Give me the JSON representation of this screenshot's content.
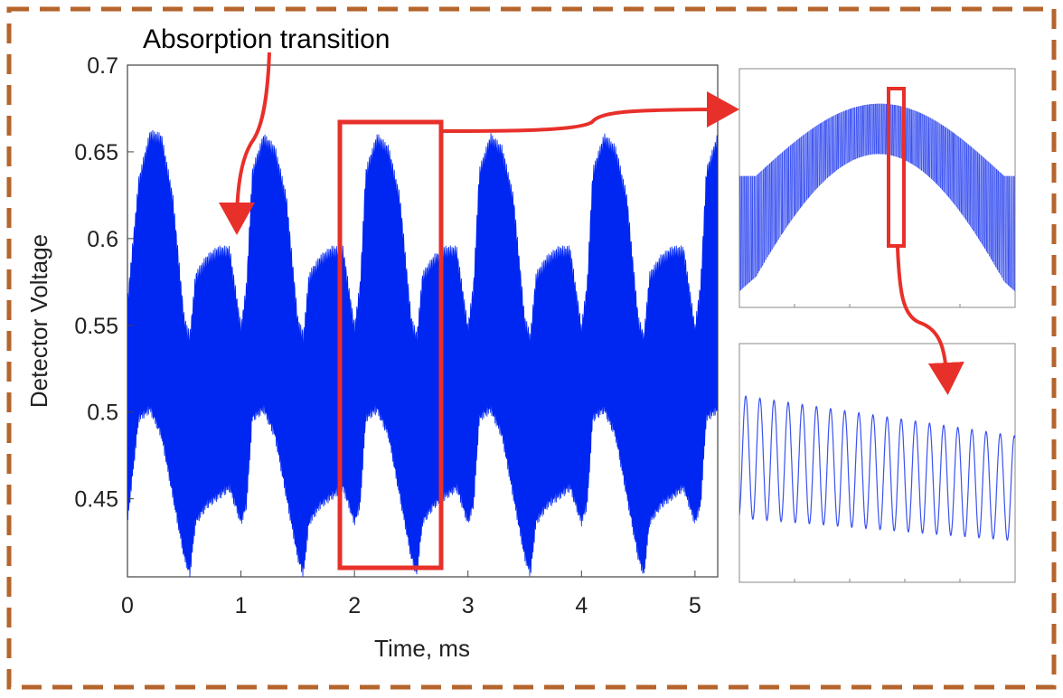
{
  "colors": {
    "signal": "#0026f2",
    "signal_light": "#3b52f0",
    "highlight": "#e8302a",
    "border": "#b5642c",
    "axis": "#444444"
  },
  "annotation": {
    "text": "Absorption transition"
  },
  "chart_data": [
    {
      "type": "area",
      "name": "main",
      "xlabel": "Time, ms",
      "ylabel": "Detector Voltage",
      "xlim": [
        0,
        5.2
      ],
      "ylim": [
        0.405,
        0.7
      ],
      "xticks": [
        0,
        1,
        2,
        3,
        4,
        5
      ],
      "yticks": [
        0.45,
        0.5,
        0.55,
        0.6,
        0.65,
        0.7
      ],
      "xtick_labels": [
        "0",
        "1",
        "2",
        "3",
        "4",
        "5"
      ],
      "ytick_labels": [
        "0.45",
        "0.5",
        "0.55",
        "0.6",
        "0.65",
        "0.7"
      ],
      "grid": false,
      "series": [
        {
          "x": [
            0,
            0.1,
            0.2,
            0.3,
            0.4,
            0.5,
            0.55,
            0.6,
            0.7,
            0.8,
            0.9,
            1.0,
            1.05,
            1.1,
            1.2,
            1.3,
            1.4,
            1.5,
            1.55,
            1.6,
            1.7,
            1.8,
            1.9,
            2.0,
            2.05,
            2.1,
            2.2,
            2.3,
            2.4,
            2.5,
            2.55,
            2.6,
            2.7,
            2.8,
            2.9,
            3.0,
            3.05,
            3.1,
            3.2,
            3.3,
            3.4,
            3.5,
            3.55,
            3.6,
            3.7,
            3.8,
            3.9,
            4.0,
            4.05,
            4.1,
            4.2,
            4.3,
            4.4,
            4.5,
            4.55,
            4.6,
            4.7,
            4.8,
            4.9,
            5.0,
            5.05,
            5.1,
            5.2
          ],
          "upper": [
            0.56,
            0.63,
            0.657,
            0.655,
            0.62,
            0.55,
            0.54,
            0.575,
            0.585,
            0.59,
            0.59,
            0.545,
            0.57,
            0.635,
            0.655,
            0.648,
            0.62,
            0.55,
            0.54,
            0.575,
            0.585,
            0.59,
            0.59,
            0.545,
            0.57,
            0.635,
            0.655,
            0.648,
            0.62,
            0.55,
            0.54,
            0.575,
            0.585,
            0.59,
            0.59,
            0.545,
            0.57,
            0.635,
            0.655,
            0.648,
            0.62,
            0.55,
            0.54,
            0.575,
            0.585,
            0.59,
            0.59,
            0.545,
            0.57,
            0.635,
            0.655,
            0.648,
            0.62,
            0.55,
            0.54,
            0.575,
            0.585,
            0.59,
            0.59,
            0.545,
            0.57,
            0.635,
            0.655
          ],
          "lower": [
            0.44,
            0.5,
            0.505,
            0.49,
            0.455,
            0.42,
            0.41,
            0.44,
            0.45,
            0.455,
            0.46,
            0.44,
            0.45,
            0.5,
            0.505,
            0.49,
            0.455,
            0.42,
            0.41,
            0.44,
            0.45,
            0.455,
            0.46,
            0.44,
            0.45,
            0.5,
            0.505,
            0.49,
            0.455,
            0.42,
            0.41,
            0.44,
            0.45,
            0.455,
            0.46,
            0.44,
            0.45,
            0.5,
            0.505,
            0.49,
            0.455,
            0.42,
            0.41,
            0.44,
            0.45,
            0.455,
            0.46,
            0.44,
            0.45,
            0.5,
            0.505,
            0.49,
            0.455,
            0.42,
            0.41,
            0.44,
            0.45,
            0.455,
            0.46,
            0.44,
            0.45,
            0.5,
            0.505
          ]
        }
      ]
    },
    {
      "type": "line",
      "name": "inset-zoom-1",
      "x_range": [
        1.9,
        2.8
      ],
      "grid": false
    },
    {
      "type": "line",
      "name": "inset-zoom-2",
      "grid": false
    }
  ]
}
